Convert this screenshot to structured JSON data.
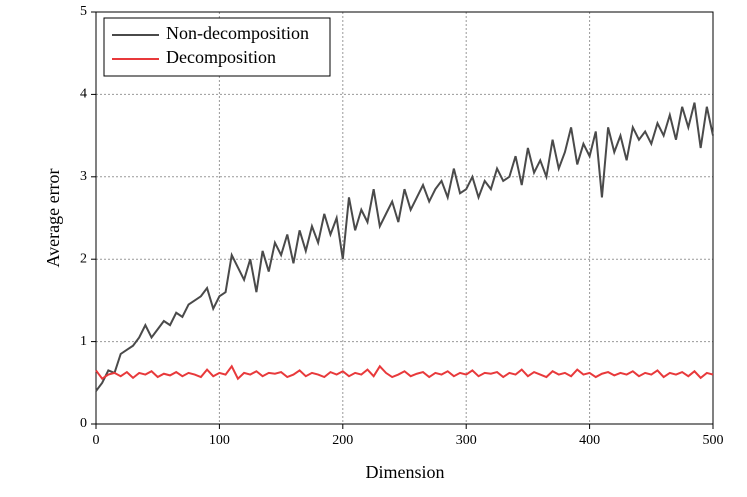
{
  "chart_data": {
    "type": "line",
    "xlabel": "Dimension",
    "ylabel": "Average error",
    "x": [
      0,
      5,
      10,
      15,
      20,
      25,
      30,
      35,
      40,
      45,
      50,
      55,
      60,
      65,
      70,
      75,
      80,
      85,
      90,
      95,
      100,
      105,
      110,
      115,
      120,
      125,
      130,
      135,
      140,
      145,
      150,
      155,
      160,
      165,
      170,
      175,
      180,
      185,
      190,
      195,
      200,
      205,
      210,
      215,
      220,
      225,
      230,
      235,
      240,
      245,
      250,
      255,
      260,
      265,
      270,
      275,
      280,
      285,
      290,
      295,
      300,
      305,
      310,
      315,
      320,
      325,
      330,
      335,
      340,
      345,
      350,
      355,
      360,
      365,
      370,
      375,
      380,
      385,
      390,
      395,
      400,
      405,
      410,
      415,
      420,
      425,
      430,
      435,
      440,
      445,
      450,
      455,
      460,
      465,
      470,
      475,
      480,
      485,
      490,
      495,
      500
    ],
    "series": [
      {
        "name": "Non-decomposition",
        "color": "#4a4a4a",
        "values": [
          0.4,
          0.5,
          0.65,
          0.62,
          0.85,
          0.9,
          0.95,
          1.05,
          1.2,
          1.05,
          1.15,
          1.25,
          1.2,
          1.35,
          1.3,
          1.45,
          1.5,
          1.55,
          1.65,
          1.4,
          1.55,
          1.6,
          2.05,
          1.9,
          1.75,
          2.0,
          1.6,
          2.1,
          1.85,
          2.2,
          2.05,
          2.3,
          1.95,
          2.35,
          2.1,
          2.4,
          2.2,
          2.55,
          2.3,
          2.5,
          2.0,
          2.75,
          2.35,
          2.6,
          2.45,
          2.85,
          2.4,
          2.55,
          2.7,
          2.45,
          2.85,
          2.6,
          2.75,
          2.9,
          2.7,
          2.85,
          2.95,
          2.75,
          3.1,
          2.8,
          2.85,
          3.0,
          2.75,
          2.95,
          2.85,
          3.1,
          2.95,
          3.0,
          3.25,
          2.9,
          3.35,
          3.05,
          3.2,
          3.0,
          3.45,
          3.1,
          3.3,
          3.6,
          3.15,
          3.4,
          3.25,
          3.55,
          2.75,
          3.6,
          3.3,
          3.5,
          3.2,
          3.6,
          3.45,
          3.55,
          3.4,
          3.65,
          3.5,
          3.75,
          3.45,
          3.85,
          3.6,
          3.9,
          3.35,
          3.85,
          3.5
        ]
      },
      {
        "name": "Decomposition",
        "color": "#e8393b",
        "values": [
          0.65,
          0.55,
          0.6,
          0.62,
          0.58,
          0.63,
          0.56,
          0.62,
          0.6,
          0.64,
          0.57,
          0.61,
          0.59,
          0.63,
          0.58,
          0.62,
          0.6,
          0.57,
          0.66,
          0.58,
          0.62,
          0.6,
          0.7,
          0.55,
          0.62,
          0.6,
          0.64,
          0.58,
          0.62,
          0.61,
          0.63,
          0.57,
          0.6,
          0.65,
          0.58,
          0.62,
          0.6,
          0.57,
          0.63,
          0.6,
          0.64,
          0.58,
          0.62,
          0.6,
          0.66,
          0.58,
          0.7,
          0.62,
          0.57,
          0.6,
          0.64,
          0.58,
          0.61,
          0.63,
          0.57,
          0.62,
          0.6,
          0.64,
          0.58,
          0.62,
          0.6,
          0.65,
          0.58,
          0.62,
          0.61,
          0.63,
          0.57,
          0.62,
          0.6,
          0.66,
          0.58,
          0.63,
          0.6,
          0.57,
          0.64,
          0.6,
          0.62,
          0.58,
          0.66,
          0.6,
          0.62,
          0.57,
          0.61,
          0.63,
          0.59,
          0.62,
          0.6,
          0.64,
          0.58,
          0.62,
          0.6,
          0.65,
          0.57,
          0.62,
          0.6,
          0.63,
          0.58,
          0.64,
          0.56,
          0.62,
          0.6
        ]
      }
    ],
    "xlim": [
      0,
      500
    ],
    "ylim": [
      0,
      5
    ],
    "xticks": [
      0,
      100,
      200,
      300,
      400,
      500
    ],
    "yticks": [
      0,
      1,
      2,
      3,
      4,
      5
    ],
    "grid": true,
    "legend": "upper-left"
  }
}
